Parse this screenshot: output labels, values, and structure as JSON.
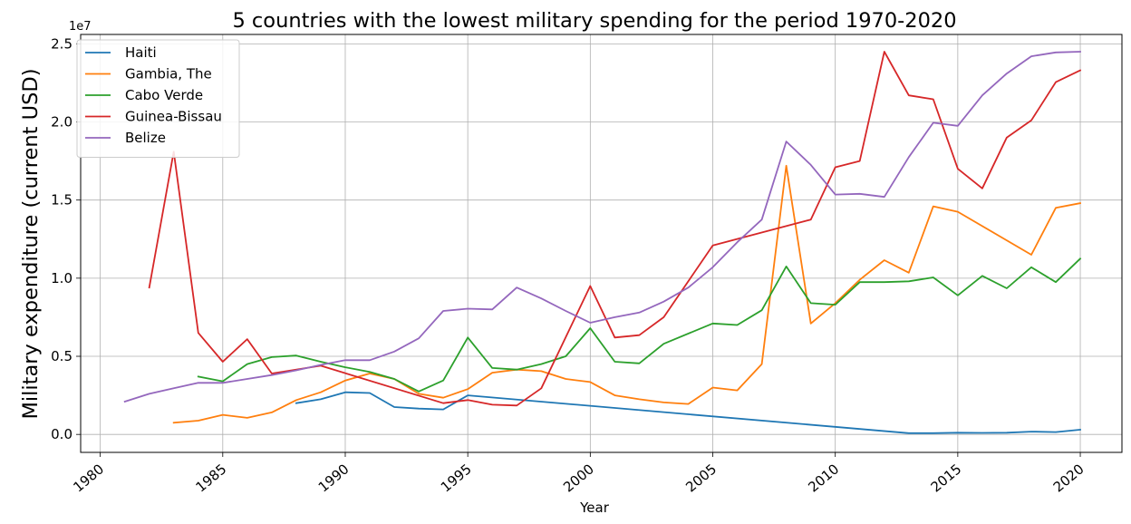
{
  "chart_data": {
    "type": "line",
    "title": "5 countries with the lowest military spending for the period 1970-2020",
    "xlabel": "Year",
    "ylabel": "Military expenditure (current USD)",
    "y_offset_label": "1e7",
    "xlim": [
      1979.2,
      2021.7
    ],
    "ylim": [
      -1150000,
      25600000
    ],
    "xticks": [
      1980,
      1985,
      1990,
      1995,
      2000,
      2005,
      2010,
      2015,
      2020
    ],
    "yticks": [
      0,
      5000000,
      10000000,
      15000000,
      20000000,
      25000000
    ],
    "ytick_labels": [
      "0.0",
      "0.5",
      "1.0",
      "1.5",
      "2.0",
      "2.5"
    ],
    "grid": true,
    "legend_position": "top-left",
    "series": [
      {
        "name": "Haiti",
        "color": "#1f77b4",
        "x": [
          1988,
          1989,
          1990,
          1991,
          1992,
          1993,
          1994,
          1995,
          2013,
          2014,
          2015,
          2016,
          2017,
          2018,
          2019,
          2020
        ],
        "y": [
          2000000,
          2250000,
          2700000,
          2650000,
          1750000,
          1650000,
          1600000,
          2500000,
          80000,
          80000,
          110000,
          100000,
          110000,
          180000,
          150000,
          300000
        ]
      },
      {
        "name": "Gambia, The",
        "color": "#ff7f0e",
        "x": [
          1983,
          1984,
          1985,
          1986,
          1987,
          1988,
          1989,
          1990,
          1991,
          1992,
          1993,
          1994,
          1995,
          1996,
          1997,
          1998,
          1999,
          2000,
          2001,
          2002,
          2003,
          2004,
          2005,
          2006,
          2007,
          2008,
          2009,
          2010,
          2011,
          2012,
          2013,
          2014,
          2015,
          2018,
          2019,
          2020
        ],
        "y": [
          750000,
          880000,
          1250000,
          1060000,
          1410000,
          2200000,
          2700000,
          3450000,
          3900000,
          3550000,
          2600000,
          2350000,
          2900000,
          3950000,
          4150000,
          4050000,
          3550000,
          3350000,
          2500000,
          2250000,
          2050000,
          1950000,
          3000000,
          2820000,
          4500000,
          17200000,
          7100000,
          8400000,
          9900000,
          11150000,
          10350000,
          14600000,
          14250000,
          11500000,
          14500000,
          14800000
        ]
      },
      {
        "name": "Cabo Verde",
        "color": "#2ca02c",
        "x": [
          1984,
          1985,
          1986,
          1987,
          1988,
          1989,
          1990,
          1991,
          1992,
          1993,
          1994,
          1995,
          1996,
          1997,
          1998,
          1999,
          2000,
          2001,
          2002,
          2003,
          2005,
          2006,
          2007,
          2008,
          2009,
          2010,
          2011,
          2012,
          2013,
          2014,
          2015,
          2016,
          2017,
          2018,
          2019,
          2020
        ],
        "y": [
          3700000,
          3400000,
          4500000,
          4950000,
          5050000,
          4650000,
          4300000,
          4000000,
          3550000,
          2750000,
          3450000,
          6200000,
          4250000,
          4150000,
          4500000,
          5000000,
          6800000,
          4650000,
          4550000,
          5800000,
          7100000,
          7000000,
          7950000,
          10750000,
          8400000,
          8300000,
          9750000,
          9750000,
          9800000,
          10050000,
          8900000,
          10150000,
          9350000,
          10700000,
          9750000,
          11250000
        ]
      },
      {
        "name": "Guinea-Bissau",
        "color": "#d62728",
        "x": [
          1982,
          1983,
          1984,
          1985,
          1986,
          1987,
          1989,
          1994,
          1995,
          1996,
          1997,
          1998,
          2000,
          2001,
          2002,
          2003,
          2005,
          2009,
          2010,
          2011,
          2012,
          2013,
          2014,
          2015,
          2016,
          2017,
          2018,
          2019,
          2020
        ],
        "y": [
          9400000,
          18100000,
          6500000,
          4650000,
          6100000,
          3900000,
          4400000,
          2000000,
          2200000,
          1900000,
          1850000,
          2950000,
          9500000,
          6200000,
          6350000,
          7500000,
          12100000,
          13750000,
          17100000,
          17500000,
          24500000,
          21700000,
          21450000,
          17000000,
          15750000,
          19000000,
          20100000,
          22550000,
          23300000
        ]
      },
      {
        "name": "Belize",
        "color": "#9467bd",
        "x": [
          1981,
          1982,
          1983,
          1984,
          1985,
          1986,
          1987,
          1988,
          1989,
          1990,
          1991,
          1992,
          1993,
          1994,
          1995,
          1996,
          1997,
          1998,
          1999,
          2000,
          2001,
          2002,
          2003,
          2004,
          2005,
          2006,
          2007,
          2008,
          2009,
          2010,
          2011,
          2012,
          2013,
          2014,
          2015,
          2016,
          2017,
          2018,
          2019,
          2020
        ],
        "y": [
          2100000,
          2600000,
          2950000,
          3300000,
          3300000,
          3550000,
          3800000,
          4100000,
          4450000,
          4750000,
          4750000,
          5300000,
          6150000,
          7900000,
          8050000,
          8000000,
          9400000,
          8700000,
          7900000,
          7150000,
          7500000,
          7800000,
          8500000,
          9400000,
          10700000,
          12300000,
          13750000,
          18750000,
          17250000,
          15350000,
          15400000,
          15200000,
          17750000,
          19950000,
          19750000,
          21700000,
          23100000,
          24200000,
          24450000,
          24500000
        ]
      }
    ]
  }
}
